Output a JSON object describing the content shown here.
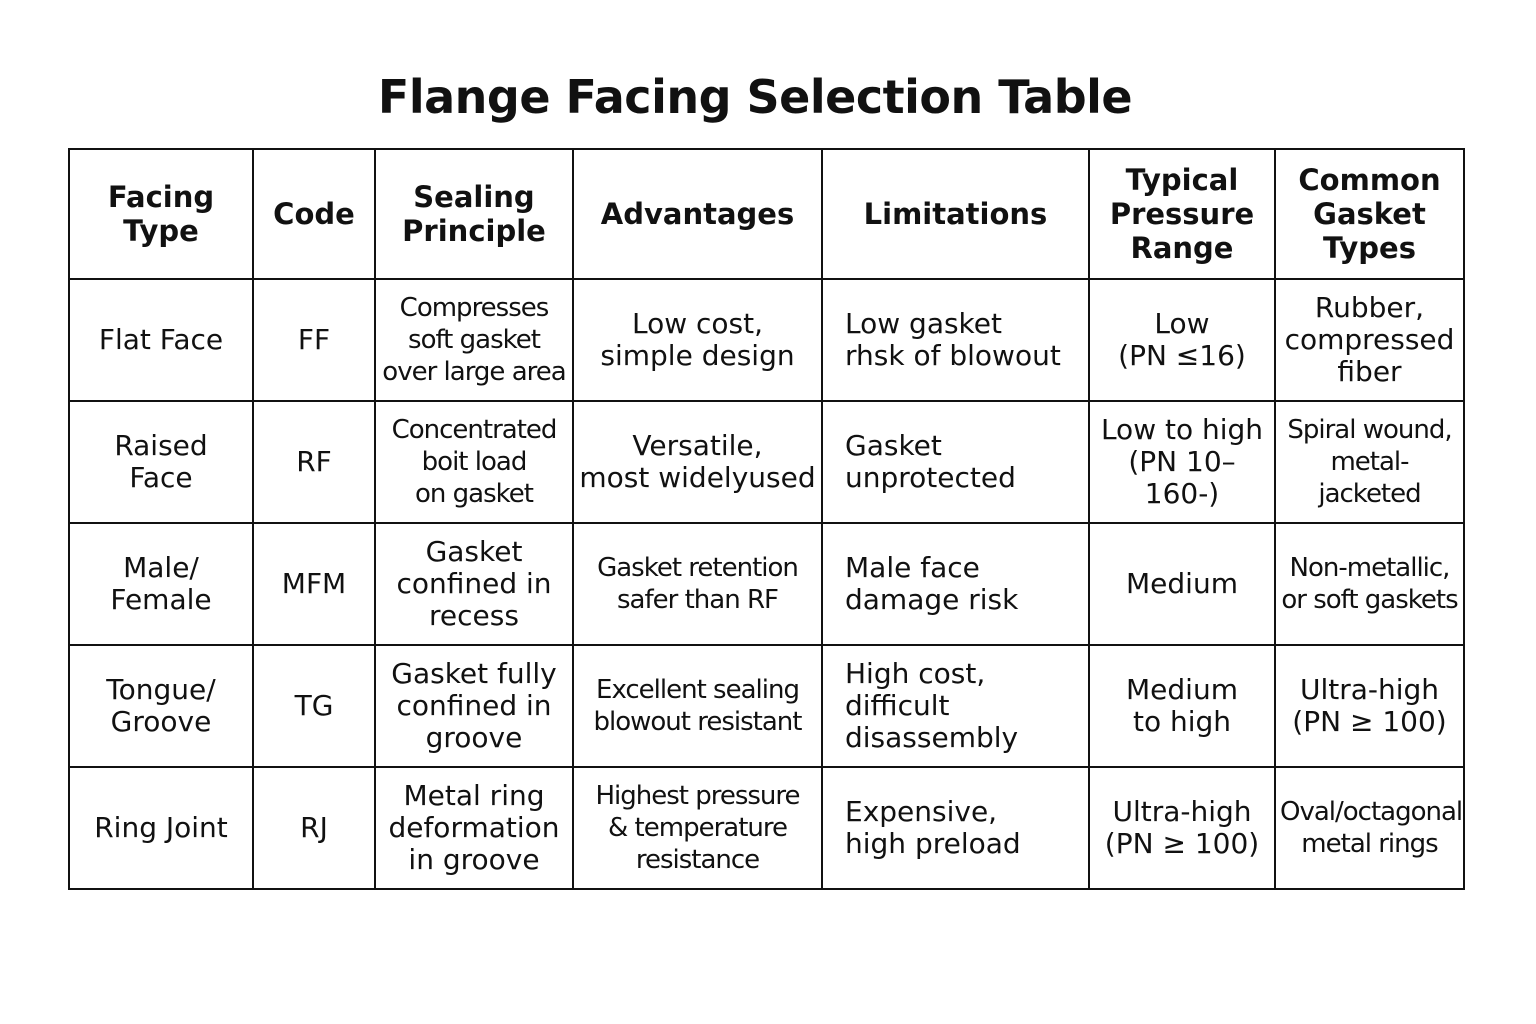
{
  "title": "Flange Facing Selection Table",
  "headers": [
    "Facing\nType",
    "Code",
    "Sealing\nPrinciple",
    "Advantages",
    "Limitations",
    "Typical\nPressure\nRange",
    "Common\nGasket\nTypes"
  ],
  "rows": [
    [
      "Flat Face",
      "FF",
      "Compresses\nsoft gasket\nover large area",
      "Low cost,\nsimple design",
      "Low gasket\nrhsk of blowout",
      "Low\n(PN ≤16)",
      "Rubber,\ncompressed\nfiber"
    ],
    [
      "Raised\nFace",
      "RF",
      "Concentrated\nboit load\non gasket",
      "Versatile,\nmost widelyused",
      "Gasket\nunprotected",
      "Low to high\n(PN 10–160-)",
      "Spiral wound,\nmetal-jacketed"
    ],
    [
      "Male/\nFemale",
      "MFM",
      "Gasket\nconfined in\nrecess",
      "Gasket retention\nsafer than RF",
      "Male face\ndamage risk",
      "Medium",
      "Non-metallic,\nor soft gaskets"
    ],
    [
      "Tongue/\nGroove",
      "TG",
      "Gasket fully\nconfined in\ngroove",
      "Excellent sealing\nblowout resistant",
      "High cost,\ndifficult\ndisassembly",
      "Medium\nto high",
      "Ultra-high\n(PN ≥ 100)"
    ],
    [
      "Ring Joint",
      "RJ",
      "Metal ring\ndeformation\nin groove",
      "Highest pressure\n& temperature\nresistance",
      "Expensive,\nhigh preload",
      "Ultra-high\n(PN ≥ 100)",
      "Oval/octagonal\nmetal rings"
    ]
  ]
}
